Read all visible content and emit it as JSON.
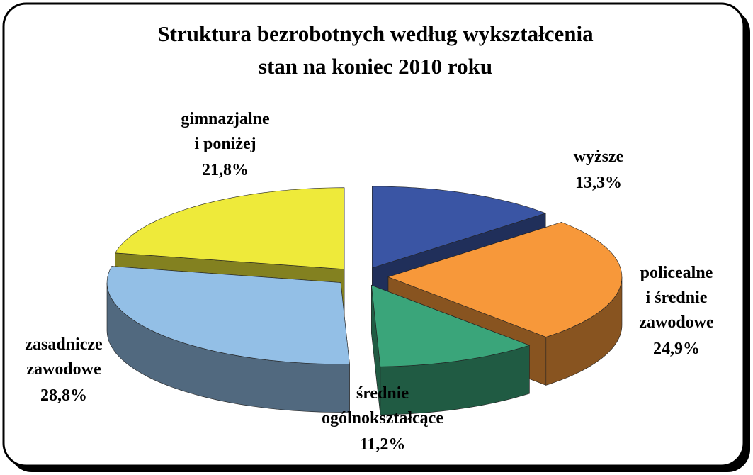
{
  "chart_data": {
    "type": "pie3d",
    "title": "Struktura bezrobotnych według wykształcenia",
    "subtitle": "stan na koniec 2010 roku",
    "categories": [
      [
        "wyższe"
      ],
      [
        "policealne",
        "i średnie",
        "zawodowe"
      ],
      [
        "średnie",
        "ogólnokształcące"
      ],
      [
        "zasadnicze",
        "zawodowe"
      ],
      [
        "gimnazjalne",
        "i poniżej"
      ]
    ],
    "values": [
      13.3,
      24.9,
      11.2,
      28.8,
      21.8
    ],
    "value_labels": [
      "13,3%",
      "24,9%",
      "11,2%",
      "28,8%",
      "21,8%"
    ],
    "colors": [
      "#3a55a4",
      "#f7983a",
      "#3aa57a",
      "#93bfe6",
      "#eeea3a"
    ]
  }
}
